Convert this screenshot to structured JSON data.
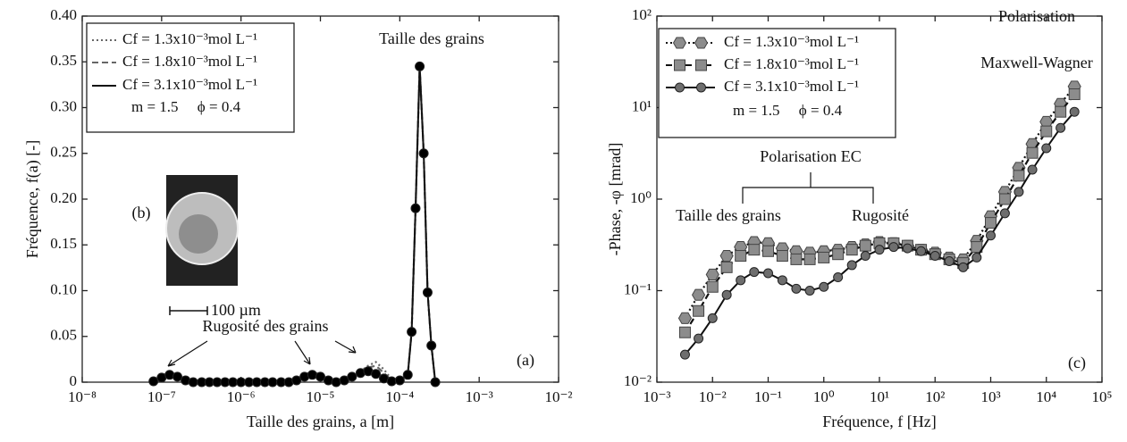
{
  "chart_data": [
    {
      "type": "line",
      "xscale": "log",
      "yscale": "linear",
      "x_label": "Taille des grains, a [m]",
      "y_label": "Fréquence, f(a) [-]",
      "xlim": [
        1e-08,
        0.01
      ],
      "ylim": [
        0,
        0.4
      ],
      "xticks": [
        {
          "value": 1e-08,
          "label": "10⁻⁸"
        },
        {
          "value": 1e-07,
          "label": "10⁻⁷"
        },
        {
          "value": 1e-06,
          "label": "10⁻⁶"
        },
        {
          "value": 1e-05,
          "label": "10⁻⁵"
        },
        {
          "value": 0.0001,
          "label": "10⁻⁴"
        },
        {
          "value": 0.001,
          "label": "10⁻³"
        },
        {
          "value": 0.01,
          "label": "10⁻²"
        }
      ],
      "yticks": [
        0,
        0.05,
        {
          "value": 0.1,
          "label": "0.10"
        },
        0.15,
        {
          "value": 0.2,
          "label": "0.20"
        },
        0.25,
        {
          "value": 0.3,
          "label": "0.30"
        },
        0.35,
        {
          "value": 0.4,
          "label": "0.40"
        }
      ],
      "legend": "upper left",
      "legend_note": "m = 1.5     ϕ = 0.4",
      "x": [
        7.9e-08,
        1e-07,
        1.26e-07,
        1.58e-07,
        2e-07,
        2.5e-07,
        3.2e-07,
        4e-07,
        5e-07,
        6.3e-07,
        7.9e-07,
        1e-06,
        1.26e-06,
        1.58e-06,
        2e-06,
        2.5e-06,
        3.2e-06,
        4e-06,
        5e-06,
        6.3e-06,
        7.9e-06,
        1e-05,
        1.26e-05,
        1.58e-05,
        2e-05,
        2.5e-05,
        3.2e-05,
        4e-05,
        5e-05,
        6.3e-05,
        7.9e-05,
        0.0001,
        0.000126,
        0.000141,
        0.000158,
        0.000178,
        0.0002,
        0.000224,
        0.00025,
        0.00028
      ],
      "series": [
        {
          "name": "Cf = 1.3x10⁻³mol L⁻¹",
          "color": "#666666",
          "dash": "dotted",
          "values": [
            0.001,
            0.007,
            0.011,
            0.008,
            0.002,
            0,
            0,
            0,
            0,
            0,
            0,
            0,
            0,
            0,
            0,
            0,
            0,
            0,
            0.003,
            0.008,
            0.012,
            0.008,
            0.002,
            0,
            0.002,
            0.007,
            0.012,
            0.018,
            0.022,
            0.014,
            0.003,
            0.002,
            0.008,
            0.055,
            0.19,
            0.345,
            0.25,
            0.098,
            0.04,
            0
          ]
        },
        {
          "name": "Cf = 1.8x10⁻³mol L⁻¹",
          "color": "#666666",
          "dash": "dashed",
          "values": [
            0.001,
            0.006,
            0.01,
            0.007,
            0.002,
            0,
            0,
            0,
            0,
            0,
            0,
            0,
            0,
            0,
            0,
            0,
            0,
            0,
            0.002,
            0.007,
            0.01,
            0.007,
            0.002,
            0,
            0.002,
            0.006,
            0.011,
            0.016,
            0.018,
            0.01,
            0.002,
            0.002,
            0.008,
            0.055,
            0.19,
            0.345,
            0.25,
            0.098,
            0.04,
            0
          ]
        },
        {
          "name": "Cf = 3.1x10⁻³mol L⁻¹",
          "color": "#111111",
          "dash": "solid",
          "marker": "circle",
          "marker_color": "#000000",
          "values": [
            0.001,
            0.005,
            0.008,
            0.006,
            0.002,
            0,
            0,
            0,
            0,
            0,
            0,
            0,
            0,
            0,
            0,
            0,
            0,
            0,
            0.002,
            0.006,
            0.008,
            0.006,
            0.002,
            0,
            0.002,
            0.006,
            0.01,
            0.012,
            0.009,
            0.004,
            0.001,
            0.002,
            0.008,
            0.055,
            0.19,
            0.345,
            0.25,
            0.098,
            0.04,
            0
          ]
        }
      ],
      "annotations": [
        "Taille des grains",
        "(b)",
        "100 µm",
        "Rugosité des grains",
        "(a)"
      ]
    },
    {
      "type": "line",
      "xscale": "log",
      "yscale": "log",
      "x_label": "Fréquence, f [Hz]",
      "y_label": "-Phase, -φ [mrad]",
      "xlim": [
        0.001,
        100000
      ],
      "ylim": [
        0.01,
        100
      ],
      "xticks": [
        {
          "value": 0.001,
          "label": "10⁻³"
        },
        {
          "value": 0.01,
          "label": "10⁻²"
        },
        {
          "value": 0.1,
          "label": "10⁻¹"
        },
        {
          "value": 1,
          "label": "10⁰"
        },
        {
          "value": 10,
          "label": "10¹"
        },
        {
          "value": 100,
          "label": "10²"
        },
        {
          "value": 1000,
          "label": "10³"
        },
        {
          "value": 10000,
          "label": "10⁴"
        },
        {
          "value": 100000,
          "label": "10⁵"
        }
      ],
      "yticks": [
        {
          "value": 0.01,
          "label": "10⁻²"
        },
        {
          "value": 0.1,
          "label": "10⁻¹"
        },
        {
          "value": 1,
          "label": "10⁰"
        },
        {
          "value": 10,
          "label": "10¹"
        },
        {
          "value": 100,
          "label": "10²"
        }
      ],
      "legend": "upper left",
      "legend_note": "m = 1.5     ϕ = 0.4",
      "x": [
        0.0032,
        0.0056,
        0.01,
        0.018,
        0.032,
        0.056,
        0.1,
        0.18,
        0.32,
        0.56,
        1,
        1.8,
        3.2,
        5.6,
        10,
        18,
        32,
        56,
        100,
        180,
        320,
        560,
        1000,
        1800,
        3200,
        5600,
        10000,
        18000,
        32000
      ],
      "series": [
        {
          "name": "Cf = 1.3x10⁻³mol L⁻¹",
          "color": "#111111",
          "dash": "dotted",
          "marker": "hexagon",
          "marker_color": "#8c8c8c",
          "values": [
            0.05,
            0.09,
            0.15,
            0.24,
            0.3,
            0.34,
            0.33,
            0.29,
            0.27,
            0.26,
            0.27,
            0.28,
            0.3,
            0.32,
            0.34,
            0.33,
            0.31,
            0.28,
            0.26,
            0.23,
            0.22,
            0.35,
            0.65,
            1.2,
            2.2,
            4,
            7,
            11,
            17
          ]
        },
        {
          "name": "Cf = 1.8x10⁻³mol L⁻¹",
          "color": "#111111",
          "dash": "dashed",
          "marker": "square",
          "marker_color": "#8c8c8c",
          "values": [
            0.035,
            0.06,
            0.11,
            0.18,
            0.24,
            0.28,
            0.27,
            0.24,
            0.22,
            0.22,
            0.23,
            0.25,
            0.28,
            0.31,
            0.33,
            0.33,
            0.31,
            0.28,
            0.25,
            0.22,
            0.2,
            0.3,
            0.55,
            1,
            1.8,
            3.2,
            5.5,
            9,
            14
          ]
        },
        {
          "name": "Cf = 3.1x10⁻³mol L⁻¹",
          "color": "#111111",
          "dash": "solid",
          "marker": "circle",
          "marker_color": "#6e6e6e",
          "values": [
            0.02,
            0.03,
            0.05,
            0.09,
            0.13,
            0.16,
            0.155,
            0.13,
            0.105,
            0.1,
            0.11,
            0.14,
            0.19,
            0.24,
            0.28,
            0.3,
            0.29,
            0.27,
            0.24,
            0.21,
            0.18,
            0.23,
            0.4,
            0.7,
            1.2,
            2.1,
            3.6,
            6,
            9
          ]
        }
      ],
      "annotations": [
        "Polarisation",
        "Maxwell-Wagner",
        "Polarisation EC",
        "Taille des grains",
        "Rugosité",
        "(c)"
      ]
    }
  ]
}
